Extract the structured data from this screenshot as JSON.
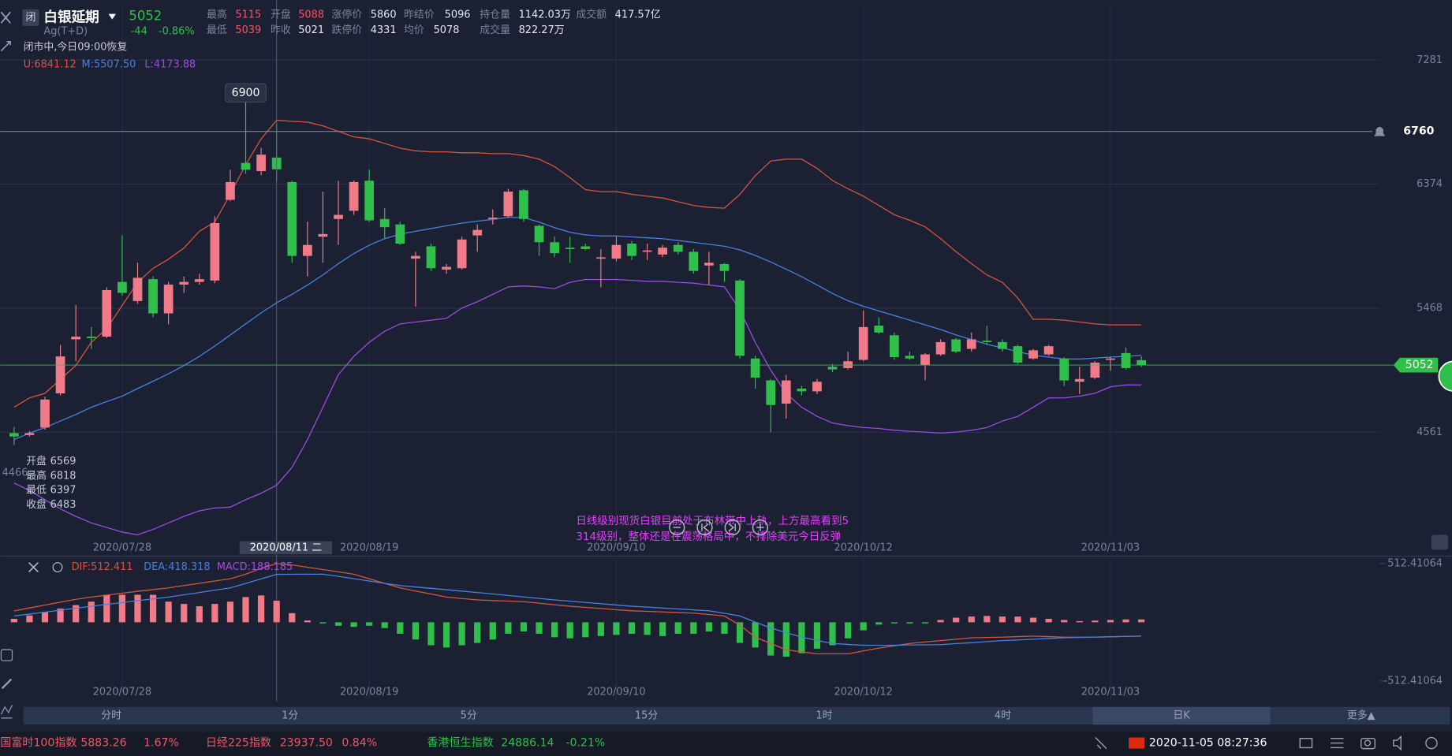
{
  "header": {
    "badge": "闭",
    "name": "白银延期",
    "code": "Ag(T+D)",
    "price": "5052",
    "change": "-44",
    "change_pct": "-0.86%",
    "status": "闭市中,今日09:00恢复",
    "stats": [
      [
        "最高",
        "5115"
      ],
      [
        "开盘",
        "5088"
      ],
      [
        "涨停价",
        "5860"
      ],
      [
        "昨结价",
        "5096"
      ],
      [
        "持仓量",
        "1142.03万"
      ],
      [
        "成交额",
        "417.57亿"
      ],
      [
        "最低",
        "5039"
      ],
      [
        "昨收",
        "5021"
      ],
      [
        "跌停价",
        "4331"
      ],
      [
        "均价",
        "5078"
      ],
      [
        "成交量",
        "822.27万"
      ]
    ]
  },
  "chart_data": [
    {
      "type": "candlestick",
      "categories": [
        null,
        null,
        null,
        null,
        null,
        null,
        null,
        "2020/07/28",
        null,
        null,
        null,
        null,
        null,
        null,
        null,
        null,
        null,
        null,
        null,
        null,
        null,
        null,
        null,
        "2020/08/19",
        null,
        null,
        null,
        null,
        null,
        null,
        null,
        null,
        null,
        null,
        null,
        null,
        null,
        null,
        null,
        "2020/09/10",
        null,
        null,
        null,
        null,
        null,
        null,
        null,
        null,
        null,
        null,
        null,
        null,
        null,
        null,
        null,
        "2020/10/12",
        null,
        null,
        null,
        null,
        null,
        null,
        null,
        null,
        null,
        null,
        null,
        null,
        null,
        null,
        null,
        "2020/11/03",
        null,
        null
      ],
      "open": [
        4555,
        4540,
        4595,
        4845,
        5240,
        5260,
        5260,
        5660,
        5520,
        5680,
        5430,
        5640,
        5660,
        5670,
        6260,
        6530,
        6470,
        6569,
        6390,
        5850,
        5990,
        6120,
        6180,
        6400,
        6120,
        6080,
        5830,
        5920,
        5750,
        5760,
        6000,
        6120,
        6140,
        6330,
        6070,
        5950,
        5910,
        5920,
        5830,
        5830,
        5940,
        5880,
        5860,
        5930,
        5880,
        5780,
        5790,
        5670,
        5100,
        4940,
        4770,
        4880,
        4860,
        5040,
        5030,
        5090,
        5340,
        5270,
        5120,
        5050,
        5130,
        5240,
        5170,
        5230,
        5220,
        5190,
        5100,
        5130,
        5100,
        4930,
        4960,
        5090,
        5140,
        5088
      ],
      "high": [
        4600,
        4570,
        4820,
        5200,
        5490,
        5330,
        5620,
        6000,
        5800,
        5700,
        5660,
        5700,
        5720,
        6140,
        6480,
        6900,
        6640,
        6818,
        6400,
        6100,
        6320,
        6400,
        6400,
        6480,
        6200,
        6100,
        5880,
        5940,
        5790,
        5990,
        6080,
        6190,
        6340,
        6340,
        6080,
        5990,
        5990,
        5940,
        5900,
        5990,
        5960,
        5940,
        5930,
        5950,
        5900,
        5880,
        5800,
        5680,
        5120,
        4950,
        4980,
        4900,
        4950,
        5060,
        5150,
        5450,
        5400,
        5290,
        5150,
        5140,
        5240,
        5250,
        5290,
        5340,
        5240,
        5200,
        5170,
        5200,
        5110,
        5040,
        5080,
        5110,
        5180,
        5115
      ],
      "low": [
        4466,
        4530,
        4580,
        4830,
        5080,
        5170,
        5250,
        5560,
        5500,
        5400,
        5350,
        5580,
        5640,
        5650,
        6250,
        6450,
        6440,
        6397,
        5800,
        5700,
        5800,
        5930,
        6150,
        6100,
        5980,
        5930,
        5480,
        5740,
        5720,
        5750,
        5880,
        6080,
        6130,
        6100,
        5850,
        5840,
        5800,
        5890,
        5620,
        5810,
        5820,
        5820,
        5840,
        5860,
        5720,
        5640,
        5660,
        5100,
        4880,
        4560,
        4660,
        4830,
        4840,
        5000,
        5020,
        5080,
        5280,
        5090,
        5090,
        4940,
        5120,
        5140,
        5150,
        5200,
        5150,
        5060,
        5090,
        5120,
        4900,
        4840,
        4950,
        5010,
        5020,
        5039
      ],
      "close": [
        4530,
        4555,
        4800,
        5115,
        5260,
        5250,
        5600,
        5580,
        5690,
        5430,
        5640,
        5660,
        5680,
        6090,
        6390,
        6480,
        6590,
        6483,
        5850,
        5930,
        6010,
        6150,
        6390,
        6110,
        6060,
        5940,
        5850,
        5760,
        5770,
        5970,
        6040,
        6130,
        6320,
        6120,
        5950,
        5870,
        5900,
        5900,
        5840,
        5930,
        5850,
        5890,
        5910,
        5880,
        5740,
        5800,
        5740,
        5120,
        4960,
        4760,
        4940,
        4860,
        4930,
        5020,
        5080,
        5330,
        5290,
        5110,
        5100,
        5130,
        5220,
        5150,
        5240,
        5220,
        5170,
        5070,
        5160,
        5190,
        4940,
        4950,
        5070,
        5100,
        5030,
        5052
      ],
      "up_color": "#f07a88",
      "down_color": "#2fbf4a",
      "series": [
        {
          "color": "#d4553f",
          "values": [
            4744,
            4812,
            4846,
            4947,
            5049,
            5218,
            5319,
            5488,
            5657,
            5759,
            5826,
            5908,
            6030,
            6097,
            6300,
            6517,
            6706,
            6841.12,
            6834,
            6828,
            6801,
            6760,
            6720,
            6706,
            6672,
            6638,
            6618,
            6611,
            6611,
            6604,
            6604,
            6598,
            6598,
            6584,
            6557,
            6503,
            6422,
            6334,
            6320,
            6320,
            6300,
            6287,
            6273,
            6246,
            6219,
            6205,
            6199,
            6300,
            6436,
            6544,
            6557,
            6557,
            6490,
            6402,
            6341,
            6287,
            6219,
            6151,
            6111,
            6063,
            5976,
            5881,
            5793,
            5711,
            5657,
            5542,
            5387,
            5387,
            5380,
            5367,
            5353,
            5346,
            5346,
            5346
          ]
        },
        {
          "color": "#4a7fe0",
          "values": [
            4507,
            4555,
            4595,
            4643,
            4690,
            4744,
            4785,
            4825,
            4880,
            4934,
            4988,
            5049,
            5116,
            5191,
            5272,
            5353,
            5434,
            5507.5,
            5569,
            5637,
            5711,
            5793,
            5867,
            5928,
            5976,
            6009,
            6030,
            6050,
            6070,
            6090,
            6104,
            6117,
            6131,
            6131,
            6097,
            6057,
            6023,
            6003,
            5996,
            5996,
            5989,
            5982,
            5976,
            5962,
            5949,
            5935,
            5921,
            5894,
            5854,
            5806,
            5752,
            5698,
            5637,
            5576,
            5522,
            5482,
            5448,
            5414,
            5380,
            5346,
            5312,
            5272,
            5238,
            5204,
            5177,
            5150,
            5123,
            5110,
            5096,
            5096,
            5103,
            5110,
            5116,
            5123
          ]
        },
        {
          "color": "#9a4ce0",
          "values": [
            4189,
            4135,
            4068,
            4000,
            3946,
            3898,
            3865,
            3831,
            3811,
            3851,
            3898,
            3946,
            3986,
            4007,
            4013,
            4068,
            4115,
            4173.88,
            4304,
            4507,
            4744,
            4981,
            5116,
            5218,
            5299,
            5353,
            5367,
            5380,
            5394,
            5468,
            5515,
            5569,
            5624,
            5630,
            5624,
            5610,
            5657,
            5678,
            5678,
            5678,
            5671,
            5664,
            5664,
            5657,
            5651,
            5637,
            5624,
            5455,
            5218,
            5015,
            4846,
            4744,
            4677,
            4629,
            4609,
            4595,
            4589,
            4575,
            4568,
            4562,
            4555,
            4562,
            4575,
            4595,
            4643,
            4677,
            4744,
            4812,
            4812,
            4825,
            4846,
            4893,
            4907,
            4907
          ]
        }
      ],
      "legend": [
        "U:6841.12",
        "M:5507.50",
        "L:4173.88"
      ],
      "ylim": [
        3777,
        7687
      ],
      "yticks": [
        4561,
        5468,
        6374,
        7281
      ],
      "grid": true,
      "alert_price": 6760,
      "last_price": 5052,
      "crosshair_label": "2020/08/11 二",
      "ohlc_labels": [
        "开盘",
        "最高",
        "最低",
        "收盘"
      ]
    },
    {
      "type": "macd",
      "categories": [
        null,
        null,
        null,
        null,
        null,
        null,
        null,
        "2020/07/28",
        null,
        null,
        null,
        null,
        null,
        null,
        null,
        null,
        null,
        null,
        null,
        null,
        null,
        null,
        null,
        "2020/08/19",
        null,
        null,
        null,
        null,
        null,
        null,
        null,
        null,
        null,
        null,
        null,
        null,
        null,
        null,
        null,
        "2020/09/10",
        null,
        null,
        null,
        null,
        null,
        null,
        null,
        null,
        null,
        null,
        null,
        null,
        null,
        null,
        null,
        "2020/10/12",
        null,
        null,
        null,
        null,
        null,
        null,
        null,
        null,
        null,
        null,
        null,
        null,
        null,
        null,
        null,
        "2020/11/03",
        null,
        null
      ],
      "histogram": [
        30,
        60,
        90,
        120,
        150,
        180,
        240,
        240,
        240,
        240,
        180,
        160,
        140,
        160,
        180,
        220,
        234,
        188.185,
        80,
        16,
        -10,
        -30,
        -40,
        -30,
        -50,
        -100,
        -150,
        -200,
        -220,
        -200,
        -180,
        -150,
        -100,
        -80,
        -100,
        -130,
        -140,
        -130,
        -120,
        -110,
        -100,
        -110,
        -120,
        -100,
        -100,
        -80,
        -100,
        -180,
        -220,
        -290,
        -300,
        -270,
        -230,
        -200,
        -140,
        -70,
        -20,
        -10,
        -10,
        -10,
        20,
        40,
        50,
        55,
        50,
        50,
        40,
        30,
        20,
        10,
        15,
        20,
        25,
        25
      ],
      "up_color": "#f07a88",
      "down_color": "#2fbf4a",
      "series": [
        {
          "color": "#d4553f",
          "values": [
            100,
            125,
            150,
            175,
            200,
            220,
            237,
            253,
            270,
            285,
            300,
            320,
            340,
            360,
            380,
            420,
            470,
            512.411,
            500,
            480,
            460,
            440,
            420,
            380,
            340,
            300,
            273,
            247,
            220,
            207,
            195,
            190,
            185,
            180,
            167,
            153,
            140,
            130,
            120,
            110,
            100,
            95,
            90,
            85,
            80,
            68,
            55,
            -25,
            -130,
            -185,
            -240,
            -258,
            -275,
            -275,
            -275,
            -250,
            -225,
            -205,
            -185,
            -172,
            -160,
            -148,
            -135,
            -132,
            -130,
            -125,
            -120,
            -125,
            -130,
            -130,
            -130,
            -127,
            -123,
            -120
          ]
        },
        {
          "color": "#4a7fe0",
          "values": [
            55,
            72,
            89,
            106,
            123,
            140,
            156,
            172,
            188,
            204,
            220,
            240,
            260,
            280,
            300,
            339,
            379,
            418.318,
            419,
            420,
            420,
            400,
            380,
            360,
            340,
            320,
            308,
            296,
            284,
            272,
            260,
            247,
            234,
            221,
            208,
            195,
            184,
            173,
            162,
            151,
            140,
            132,
            124,
            116,
            108,
            100,
            78,
            55,
            2,
            -50,
            -90,
            -130,
            -158,
            -185,
            -193,
            -200,
            -200,
            -200,
            -198,
            -197,
            -195,
            -186,
            -178,
            -169,
            -160,
            -154,
            -148,
            -141,
            -135,
            -132,
            -129,
            -126,
            -123,
            -120
          ]
        }
      ],
      "legend": [
        "DIF:512.411",
        "DEA:418.318",
        "MACD:188.185"
      ],
      "ylim": [
        -512.41064,
        512.41064
      ],
      "yticks": [
        -512.41064,
        512.41064
      ]
    }
  ],
  "annotation": [
    "日线级别现货白银目前处于布林带中上轨，上方最高看到5",
    "314级别，整体还是在震荡格局中，不排除美元今日反弹"
  ],
  "timeframes": {
    "items": [
      "分时",
      "1分",
      "5分",
      "15分",
      "1时",
      "4时",
      "日K",
      "更多▲"
    ],
    "active": "日K"
  },
  "footer": {
    "tickers": [
      [
        "国富时100指数",
        "5883.26",
        "1.67%"
      ],
      [
        "日经225指数",
        "23937.50",
        "0.84%"
      ],
      [
        "香港恒生指数",
        "24886.14",
        "-0.21%"
      ]
    ],
    "datetime": "2020-11-05 08:27:36"
  }
}
